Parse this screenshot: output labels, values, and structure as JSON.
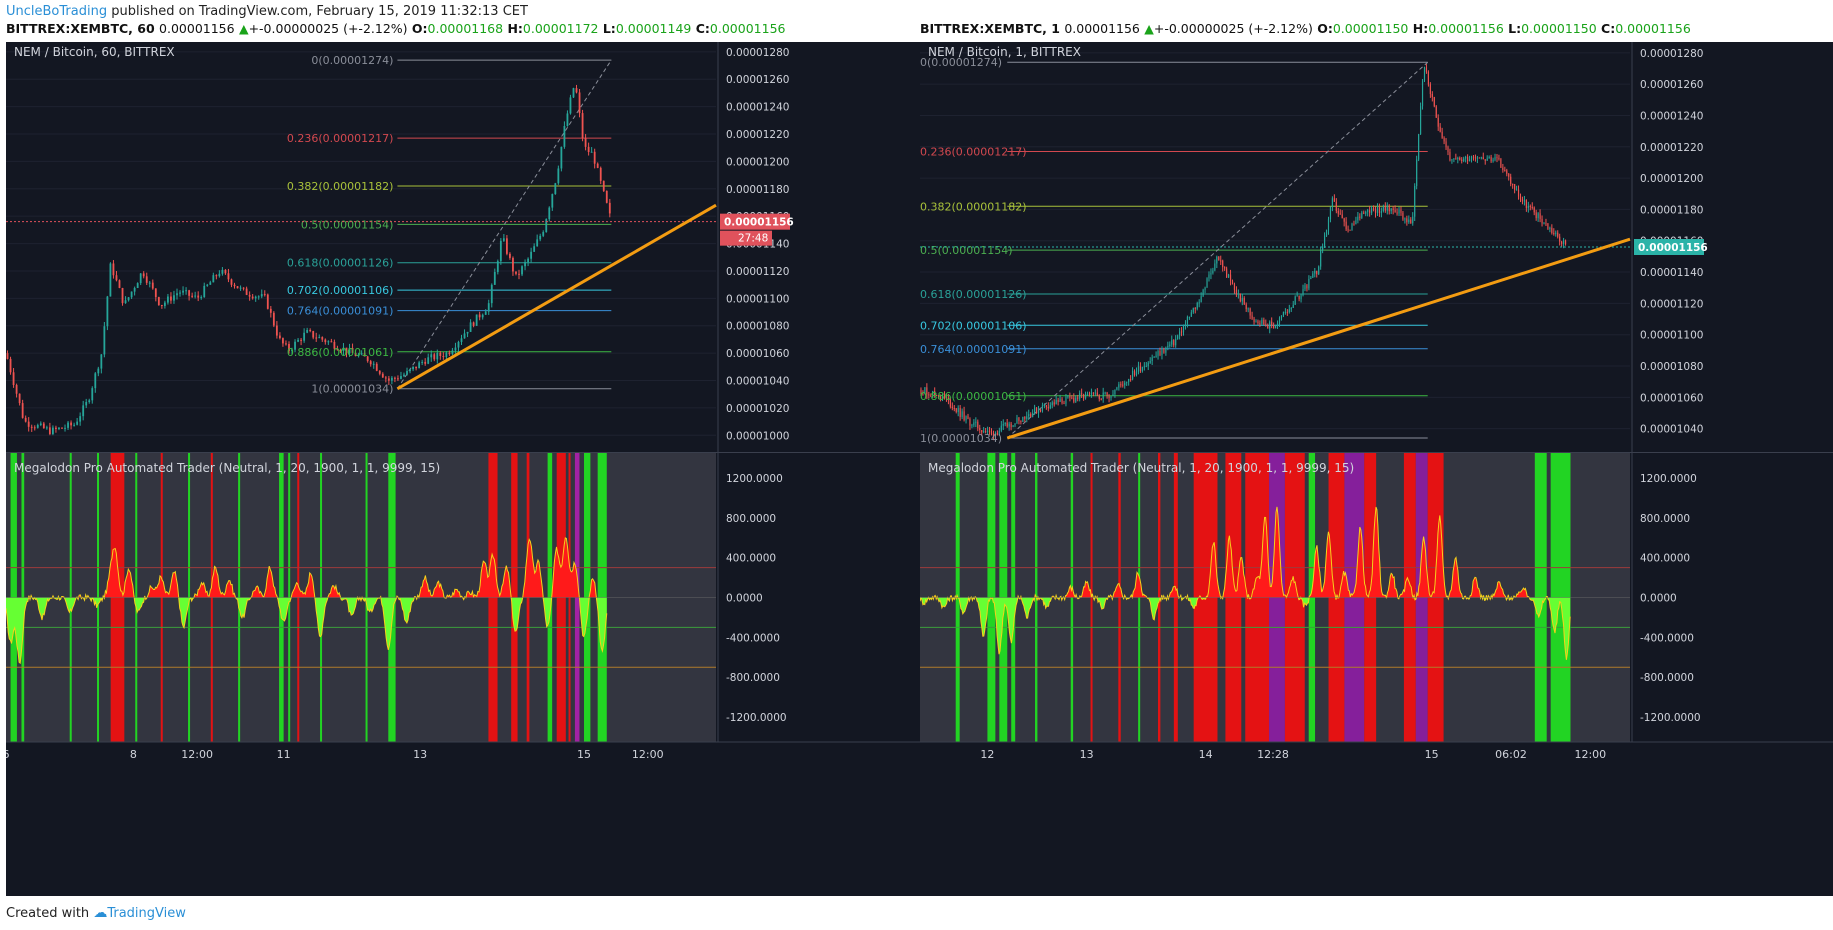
{
  "header": {
    "author": "UncleBoTrading",
    "published_text": "published on TradingView.com, February 15, 2019 11:32:13 CET"
  },
  "panels": [
    {
      "symbol_line": {
        "symbol": "BITTREX:XEMBTC, 60",
        "price": "0.00001156",
        "change": "+-0.00000025 (+-2.12%)",
        "o_label": "O:",
        "o": "0.00001168",
        "h_label": "H:",
        "h": "0.00001172",
        "l_label": "L:",
        "l": "0.00001149",
        "c_label": "C:",
        "c": "0.00001156"
      },
      "chart_title": "NEM / Bitcoin, 60, BITTREX",
      "indicator_title": "Megalodon Pro Automated Trader  (Neutral, 1, 20, 1900, 1, 1, 9999, 15)",
      "price_tag": "0.00001156",
      "countdown": "27:48",
      "tag_color": "#e0525c",
      "x_ticks": [
        {
          "label": "6",
          "x": 0
        },
        {
          "label": "8",
          "x": 1.4
        },
        {
          "label": "12:00",
          "x": 2.1
        },
        {
          "label": "11",
          "x": 3.05
        },
        {
          "label": "13",
          "x": 4.55
        },
        {
          "label": "15",
          "x": 6.35
        },
        {
          "label": "12:00",
          "x": 7.05
        }
      ]
    },
    {
      "symbol_line": {
        "symbol": "BITTREX:XEMBTC, 1",
        "price": "0.00001156",
        "change": "+-0.00000025 (+-2.12%)",
        "o_label": "O:",
        "o": "0.00001150",
        "h_label": "H:",
        "h": "0.00001156",
        "l_label": "L:",
        "l": "0.00001150",
        "c_label": "C:",
        "c": "0.00001156"
      },
      "chart_title": "NEM / Bitcoin, 1, BITTREX",
      "indicator_title": "Megalodon Pro Automated Trader  (Neutral, 1, 20, 1900, 1, 1, 9999, 15)",
      "price_tag": "0.00001156",
      "countdown": "",
      "tag_color": "#2bb3a8",
      "x_ticks": [
        {
          "label": "12",
          "x": 0.85
        },
        {
          "label": "13",
          "x": 2.1
        },
        {
          "label": "14",
          "x": 3.6
        },
        {
          "label": "12:28",
          "x": 4.45
        },
        {
          "label": "15",
          "x": 6.45
        },
        {
          "label": "06:02",
          "x": 7.45
        },
        {
          "label": "12:00",
          "x": 8.45
        }
      ]
    }
  ],
  "chart_data": [
    {
      "type": "candlestick",
      "title": "NEM / Bitcoin, 60, BITTREX",
      "ylim": [
        9.9e-06,
        1.285e-05
      ],
      "y_ticks": [
        "0.00001280",
        "0.00001260",
        "0.00001240",
        "0.00001220",
        "0.00001200",
        "0.00001180",
        "0.00001160",
        "0.00001140",
        "0.00001120",
        "0.00001100",
        "0.00001080",
        "0.00001060",
        "0.00001040",
        "0.00001020",
        "0.00001000"
      ],
      "fib_levels": [
        {
          "label": "0(0.00001274)",
          "value": 1.274e-05,
          "color": "#8a8e99"
        },
        {
          "label": "0.236(0.00001217)",
          "value": 1.217e-05,
          "color": "#d2484f"
        },
        {
          "label": "0.382(0.00001182)",
          "value": 1.182e-05,
          "color": "#a8c13a"
        },
        {
          "label": "0.5(0.00001154)",
          "value": 1.154e-05,
          "color": "#4caf50"
        },
        {
          "label": "0.618(0.00001126)",
          "value": 1.126e-05,
          "color": "#2aa198"
        },
        {
          "label": "0.702(0.00001106)",
          "value": 1.106e-05,
          "color": "#38c8e0"
        },
        {
          "label": "0.764(0.00001091)",
          "value": 1.091e-05,
          "color": "#3a8fd8"
        },
        {
          "label": "0.886(0.00001061)",
          "value": 1.061e-05,
          "color": "#3cb843"
        },
        {
          "label": "1(0.00001034)",
          "value": 1.034e-05,
          "color": "#8a8e99"
        }
      ],
      "price_path": [
        [
          0.0,
          1.06e-05
        ],
        [
          0.2,
          1.01e-05
        ],
        [
          0.5,
          1.003e-05
        ],
        [
          0.75,
          1.008e-05
        ],
        [
          0.9,
          1.025e-05
        ],
        [
          1.05,
          1.06e-05
        ],
        [
          1.15,
          1.125e-05
        ],
        [
          1.3,
          1.095e-05
        ],
        [
          1.5,
          1.12e-05
        ],
        [
          1.7,
          1.095e-05
        ],
        [
          1.9,
          1.105e-05
        ],
        [
          2.1,
          1.1e-05
        ],
        [
          2.35,
          1.12e-05
        ],
        [
          2.6,
          1.105e-05
        ],
        [
          2.85,
          1.1e-05
        ],
        [
          3.0,
          1.07e-05
        ],
        [
          3.1,
          1.062e-05
        ],
        [
          3.3,
          1.075e-05
        ],
        [
          3.55,
          1.068e-05
        ],
        [
          3.8,
          1.06e-05
        ],
        [
          4.0,
          1.055e-05
        ],
        [
          4.2,
          1.04e-05
        ],
        [
          4.4,
          1.045e-05
        ],
        [
          4.6,
          1.055e-05
        ],
        [
          4.85,
          1.06e-05
        ],
        [
          5.1,
          1.08e-05
        ],
        [
          5.3,
          1.095e-05
        ],
        [
          5.45,
          1.145e-05
        ],
        [
          5.6,
          1.115e-05
        ],
        [
          5.75,
          1.13e-05
        ],
        [
          5.9,
          1.15e-05
        ],
        [
          6.05,
          1.19e-05
        ],
        [
          6.15,
          1.23e-05
        ],
        [
          6.25,
          1.258e-05
        ],
        [
          6.35,
          1.21e-05
        ],
        [
          6.45,
          1.205e-05
        ],
        [
          6.55,
          1.18e-05
        ],
        [
          6.65,
          1.156e-05
        ]
      ],
      "trendline": [
        [
          4.3,
          1.034e-05
        ],
        [
          7.8,
          1.168e-05
        ]
      ],
      "x_range": [
        0,
        7.8
      ],
      "osc_ylim": [
        -1450,
        1450
      ],
      "osc_ticks": [
        "1200.0000",
        "800.0000",
        "400.0000",
        "0.0000",
        "-400.0000",
        "-800.0000",
        "-1200.0000"
      ],
      "osc_peaks": [
        [
          0.05,
          -450
        ],
        [
          0.15,
          -650
        ],
        [
          0.4,
          -200
        ],
        [
          0.7,
          -150
        ],
        [
          1.0,
          -80
        ],
        [
          1.15,
          200
        ],
        [
          1.2,
          450
        ],
        [
          1.35,
          300
        ],
        [
          1.45,
          -150
        ],
        [
          1.6,
          100
        ],
        [
          1.7,
          200
        ],
        [
          1.85,
          250
        ],
        [
          1.95,
          -300
        ],
        [
          2.15,
          150
        ],
        [
          2.3,
          300
        ],
        [
          2.45,
          180
        ],
        [
          2.6,
          -200
        ],
        [
          2.75,
          100
        ],
        [
          2.9,
          300
        ],
        [
          3.05,
          -250
        ],
        [
          3.2,
          150
        ],
        [
          3.35,
          250
        ],
        [
          3.45,
          -400
        ],
        [
          3.6,
          120
        ],
        [
          3.8,
          -200
        ],
        [
          4.0,
          -150
        ],
        [
          4.2,
          -500
        ],
        [
          4.4,
          -250
        ],
        [
          4.6,
          200
        ],
        [
          4.75,
          150
        ],
        [
          4.95,
          80
        ],
        [
          5.1,
          50
        ],
        [
          5.25,
          350
        ],
        [
          5.35,
          420
        ],
        [
          5.5,
          300
        ],
        [
          5.6,
          -350
        ],
        [
          5.75,
          600
        ],
        [
          5.85,
          350
        ],
        [
          5.95,
          -300
        ],
        [
          6.05,
          480
        ],
        [
          6.15,
          620
        ],
        [
          6.25,
          350
        ],
        [
          6.35,
          -400
        ],
        [
          6.45,
          200
        ],
        [
          6.55,
          -550
        ]
      ],
      "osc_x_max": 6.6,
      "signal_bands": [
        {
          "from": 0.05,
          "to": 0.12,
          "color": "#22dd22"
        },
        {
          "from": 0.17,
          "to": 0.2,
          "color": "#22dd22"
        },
        {
          "from": 0.7,
          "to": 0.72,
          "color": "#22dd22"
        },
        {
          "from": 1.0,
          "to": 1.02,
          "color": "#22dd22"
        },
        {
          "from": 1.15,
          "to": 1.3,
          "color": "#ee1111"
        },
        {
          "from": 1.42,
          "to": 1.44,
          "color": "#22dd22"
        },
        {
          "from": 1.7,
          "to": 1.72,
          "color": "#ee1111"
        },
        {
          "from": 2.0,
          "to": 2.02,
          "color": "#22dd22"
        },
        {
          "from": 2.25,
          "to": 2.27,
          "color": "#ee1111"
        },
        {
          "from": 2.55,
          "to": 2.57,
          "color": "#22dd22"
        },
        {
          "from": 3.0,
          "to": 3.05,
          "color": "#22dd22"
        },
        {
          "from": 3.1,
          "to": 3.12,
          "color": "#22dd22"
        },
        {
          "from": 3.2,
          "to": 3.22,
          "color": "#ee1111"
        },
        {
          "from": 3.45,
          "to": 3.47,
          "color": "#22dd22"
        },
        {
          "from": 3.95,
          "to": 3.97,
          "color": "#22dd22"
        },
        {
          "from": 4.2,
          "to": 4.28,
          "color": "#22dd22"
        },
        {
          "from": 5.3,
          "to": 5.4,
          "color": "#ee1111"
        },
        {
          "from": 5.55,
          "to": 5.62,
          "color": "#ee1111"
        },
        {
          "from": 5.72,
          "to": 5.75,
          "color": "#ee1111"
        },
        {
          "from": 5.95,
          "to": 6.0,
          "color": "#22dd22"
        },
        {
          "from": 6.05,
          "to": 6.15,
          "color": "#ee1111"
        },
        {
          "from": 6.18,
          "to": 6.2,
          "color": "#ee1111"
        },
        {
          "from": 6.25,
          "to": 6.3,
          "color": "#aa22aa"
        },
        {
          "from": 6.35,
          "to": 6.42,
          "color": "#22dd22"
        },
        {
          "from": 6.5,
          "to": 6.6,
          "color": "#22dd22"
        }
      ]
    },
    {
      "type": "candlestick",
      "title": "NEM / Bitcoin, 1, BITTREX",
      "ylim": [
        1.027e-05,
        1.285e-05
      ],
      "y_ticks": [
        "0.00001280",
        "0.00001260",
        "0.00001240",
        "0.00001220",
        "0.00001200",
        "0.00001180",
        "0.00001160",
        "0.00001140",
        "0.00001120",
        "0.00001100",
        "0.00001080",
        "0.00001060",
        "0.00001040"
      ],
      "fib_levels": [
        {
          "label": "0(0.00001274)",
          "value": 1.274e-05,
          "color": "#8a8e99"
        },
        {
          "label": "0.236(0.00001217)",
          "value": 1.217e-05,
          "color": "#d2484f"
        },
        {
          "label": "0.382(0.00001182)",
          "value": 1.182e-05,
          "color": "#a8c13a"
        },
        {
          "label": "0.5(0.00001154)",
          "value": 1.154e-05,
          "color": "#4caf50"
        },
        {
          "label": "0.618(0.00001126)",
          "value": 1.126e-05,
          "color": "#2aa198"
        },
        {
          "label": "0.702(0.00001106)",
          "value": 1.106e-05,
          "color": "#38c8e0"
        },
        {
          "label": "0.764(0.00001091)",
          "value": 1.091e-05,
          "color": "#3a8fd8"
        },
        {
          "label": "0.886(0.00001061)",
          "value": 1.061e-05,
          "color": "#3cb843"
        },
        {
          "label": "1(0.00001034)",
          "value": 1.034e-05,
          "color": "#8a8e99"
        }
      ],
      "price_path": [
        [
          0.0,
          1.065e-05
        ],
        [
          0.3,
          1.06e-05
        ],
        [
          0.6,
          1.045e-05
        ],
        [
          0.9,
          1.036e-05
        ],
        [
          1.2,
          1.045e-05
        ],
        [
          1.6,
          1.055e-05
        ],
        [
          2.0,
          1.06e-05
        ],
        [
          2.4,
          1.062e-05
        ],
        [
          2.8,
          1.08e-05
        ],
        [
          3.2,
          1.095e-05
        ],
        [
          3.5,
          1.12e-05
        ],
        [
          3.75,
          1.15e-05
        ],
        [
          3.95,
          1.13e-05
        ],
        [
          4.2,
          1.11e-05
        ],
        [
          4.45,
          1.105e-05
        ],
        [
          4.7,
          1.12e-05
        ],
        [
          5.0,
          1.14e-05
        ],
        [
          5.2,
          1.185e-05
        ],
        [
          5.4,
          1.165e-05
        ],
        [
          5.6,
          1.18e-05
        ],
        [
          5.8,
          1.18e-05
        ],
        [
          6.0,
          1.18e-05
        ],
        [
          6.2,
          1.17e-05
        ],
        [
          6.35,
          1.274e-05
        ],
        [
          6.5,
          1.24e-05
        ],
        [
          6.7,
          1.21e-05
        ],
        [
          7.0,
          1.215e-05
        ],
        [
          7.3,
          1.21e-05
        ],
        [
          7.6,
          1.185e-05
        ],
        [
          7.9,
          1.17e-05
        ],
        [
          8.15,
          1.156e-05
        ]
      ],
      "trendline": [
        [
          1.1,
          1.034e-05
        ],
        [
          8.95,
          1.161e-05
        ]
      ],
      "x_range": [
        0,
        8.95
      ],
      "osc_ylim": [
        -1450,
        1450
      ],
      "osc_ticks": [
        "1200.0000",
        "800.0000",
        "400.0000",
        "0.0000",
        "-400.0000",
        "-800.0000",
        "-1200.0000"
      ],
      "osc_peaks": [
        [
          0.05,
          -50
        ],
        [
          0.3,
          -100
        ],
        [
          0.55,
          -150
        ],
        [
          0.8,
          -400
        ],
        [
          1.0,
          -550
        ],
        [
          1.15,
          -450
        ],
        [
          1.35,
          -200
        ],
        [
          1.6,
          -100
        ],
        [
          1.9,
          100
        ],
        [
          2.1,
          150
        ],
        [
          2.3,
          -100
        ],
        [
          2.5,
          120
        ],
        [
          2.75,
          250
        ],
        [
          2.95,
          -200
        ],
        [
          3.2,
          120
        ],
        [
          3.45,
          -100
        ],
        [
          3.7,
          550
        ],
        [
          3.9,
          600
        ],
        [
          4.05,
          400
        ],
        [
          4.25,
          200
        ],
        [
          4.35,
          800
        ],
        [
          4.5,
          900
        ],
        [
          4.7,
          200
        ],
        [
          4.85,
          -80
        ],
        [
          5.0,
          500
        ],
        [
          5.15,
          650
        ],
        [
          5.35,
          250
        ],
        [
          5.55,
          700
        ],
        [
          5.75,
          900
        ],
        [
          5.95,
          250
        ],
        [
          6.15,
          200
        ],
        [
          6.35,
          600
        ],
        [
          6.55,
          800
        ],
        [
          6.75,
          400
        ],
        [
          7.0,
          200
        ],
        [
          7.3,
          150
        ],
        [
          7.6,
          100
        ],
        [
          7.8,
          -200
        ],
        [
          8.0,
          -350
        ],
        [
          8.15,
          -600
        ]
      ],
      "osc_x_max": 8.2,
      "signal_bands": [
        {
          "from": 0.45,
          "to": 0.5,
          "color": "#22dd22"
        },
        {
          "from": 0.85,
          "to": 0.95,
          "color": "#22dd22"
        },
        {
          "from": 1.0,
          "to": 1.1,
          "color": "#22dd22"
        },
        {
          "from": 1.15,
          "to": 1.2,
          "color": "#22dd22"
        },
        {
          "from": 1.45,
          "to": 1.48,
          "color": "#22dd22"
        },
        {
          "from": 1.9,
          "to": 1.93,
          "color": "#22dd22"
        },
        {
          "from": 2.15,
          "to": 2.17,
          "color": "#ee1111"
        },
        {
          "from": 2.5,
          "to": 2.53,
          "color": "#ee1111"
        },
        {
          "from": 2.75,
          "to": 2.77,
          "color": "#22dd22"
        },
        {
          "from": 3.0,
          "to": 3.03,
          "color": "#ee1111"
        },
        {
          "from": 3.2,
          "to": 3.25,
          "color": "#ee1111"
        },
        {
          "from": 3.45,
          "to": 3.75,
          "color": "#ee1111"
        },
        {
          "from": 3.85,
          "to": 4.05,
          "color": "#ee1111"
        },
        {
          "from": 4.1,
          "to": 4.4,
          "color": "#ee1111"
        },
        {
          "from": 4.4,
          "to": 4.6,
          "color": "#8a1fa0"
        },
        {
          "from": 4.6,
          "to": 4.85,
          "color": "#ee1111"
        },
        {
          "from": 4.9,
          "to": 4.98,
          "color": "#22dd22"
        },
        {
          "from": 5.15,
          "to": 5.35,
          "color": "#ee1111"
        },
        {
          "from": 5.35,
          "to": 5.6,
          "color": "#8a1fa0"
        },
        {
          "from": 5.6,
          "to": 5.75,
          "color": "#ee1111"
        },
        {
          "from": 6.1,
          "to": 6.25,
          "color": "#ee1111"
        },
        {
          "from": 6.25,
          "to": 6.4,
          "color": "#8a1fa0"
        },
        {
          "from": 6.4,
          "to": 6.6,
          "color": "#ee1111"
        },
        {
          "from": 7.75,
          "to": 7.9,
          "color": "#22dd22"
        },
        {
          "from": 7.95,
          "to": 8.2,
          "color": "#22dd22"
        }
      ]
    }
  ],
  "footer": {
    "created_with": "Created with",
    "brand": "TradingView"
  }
}
